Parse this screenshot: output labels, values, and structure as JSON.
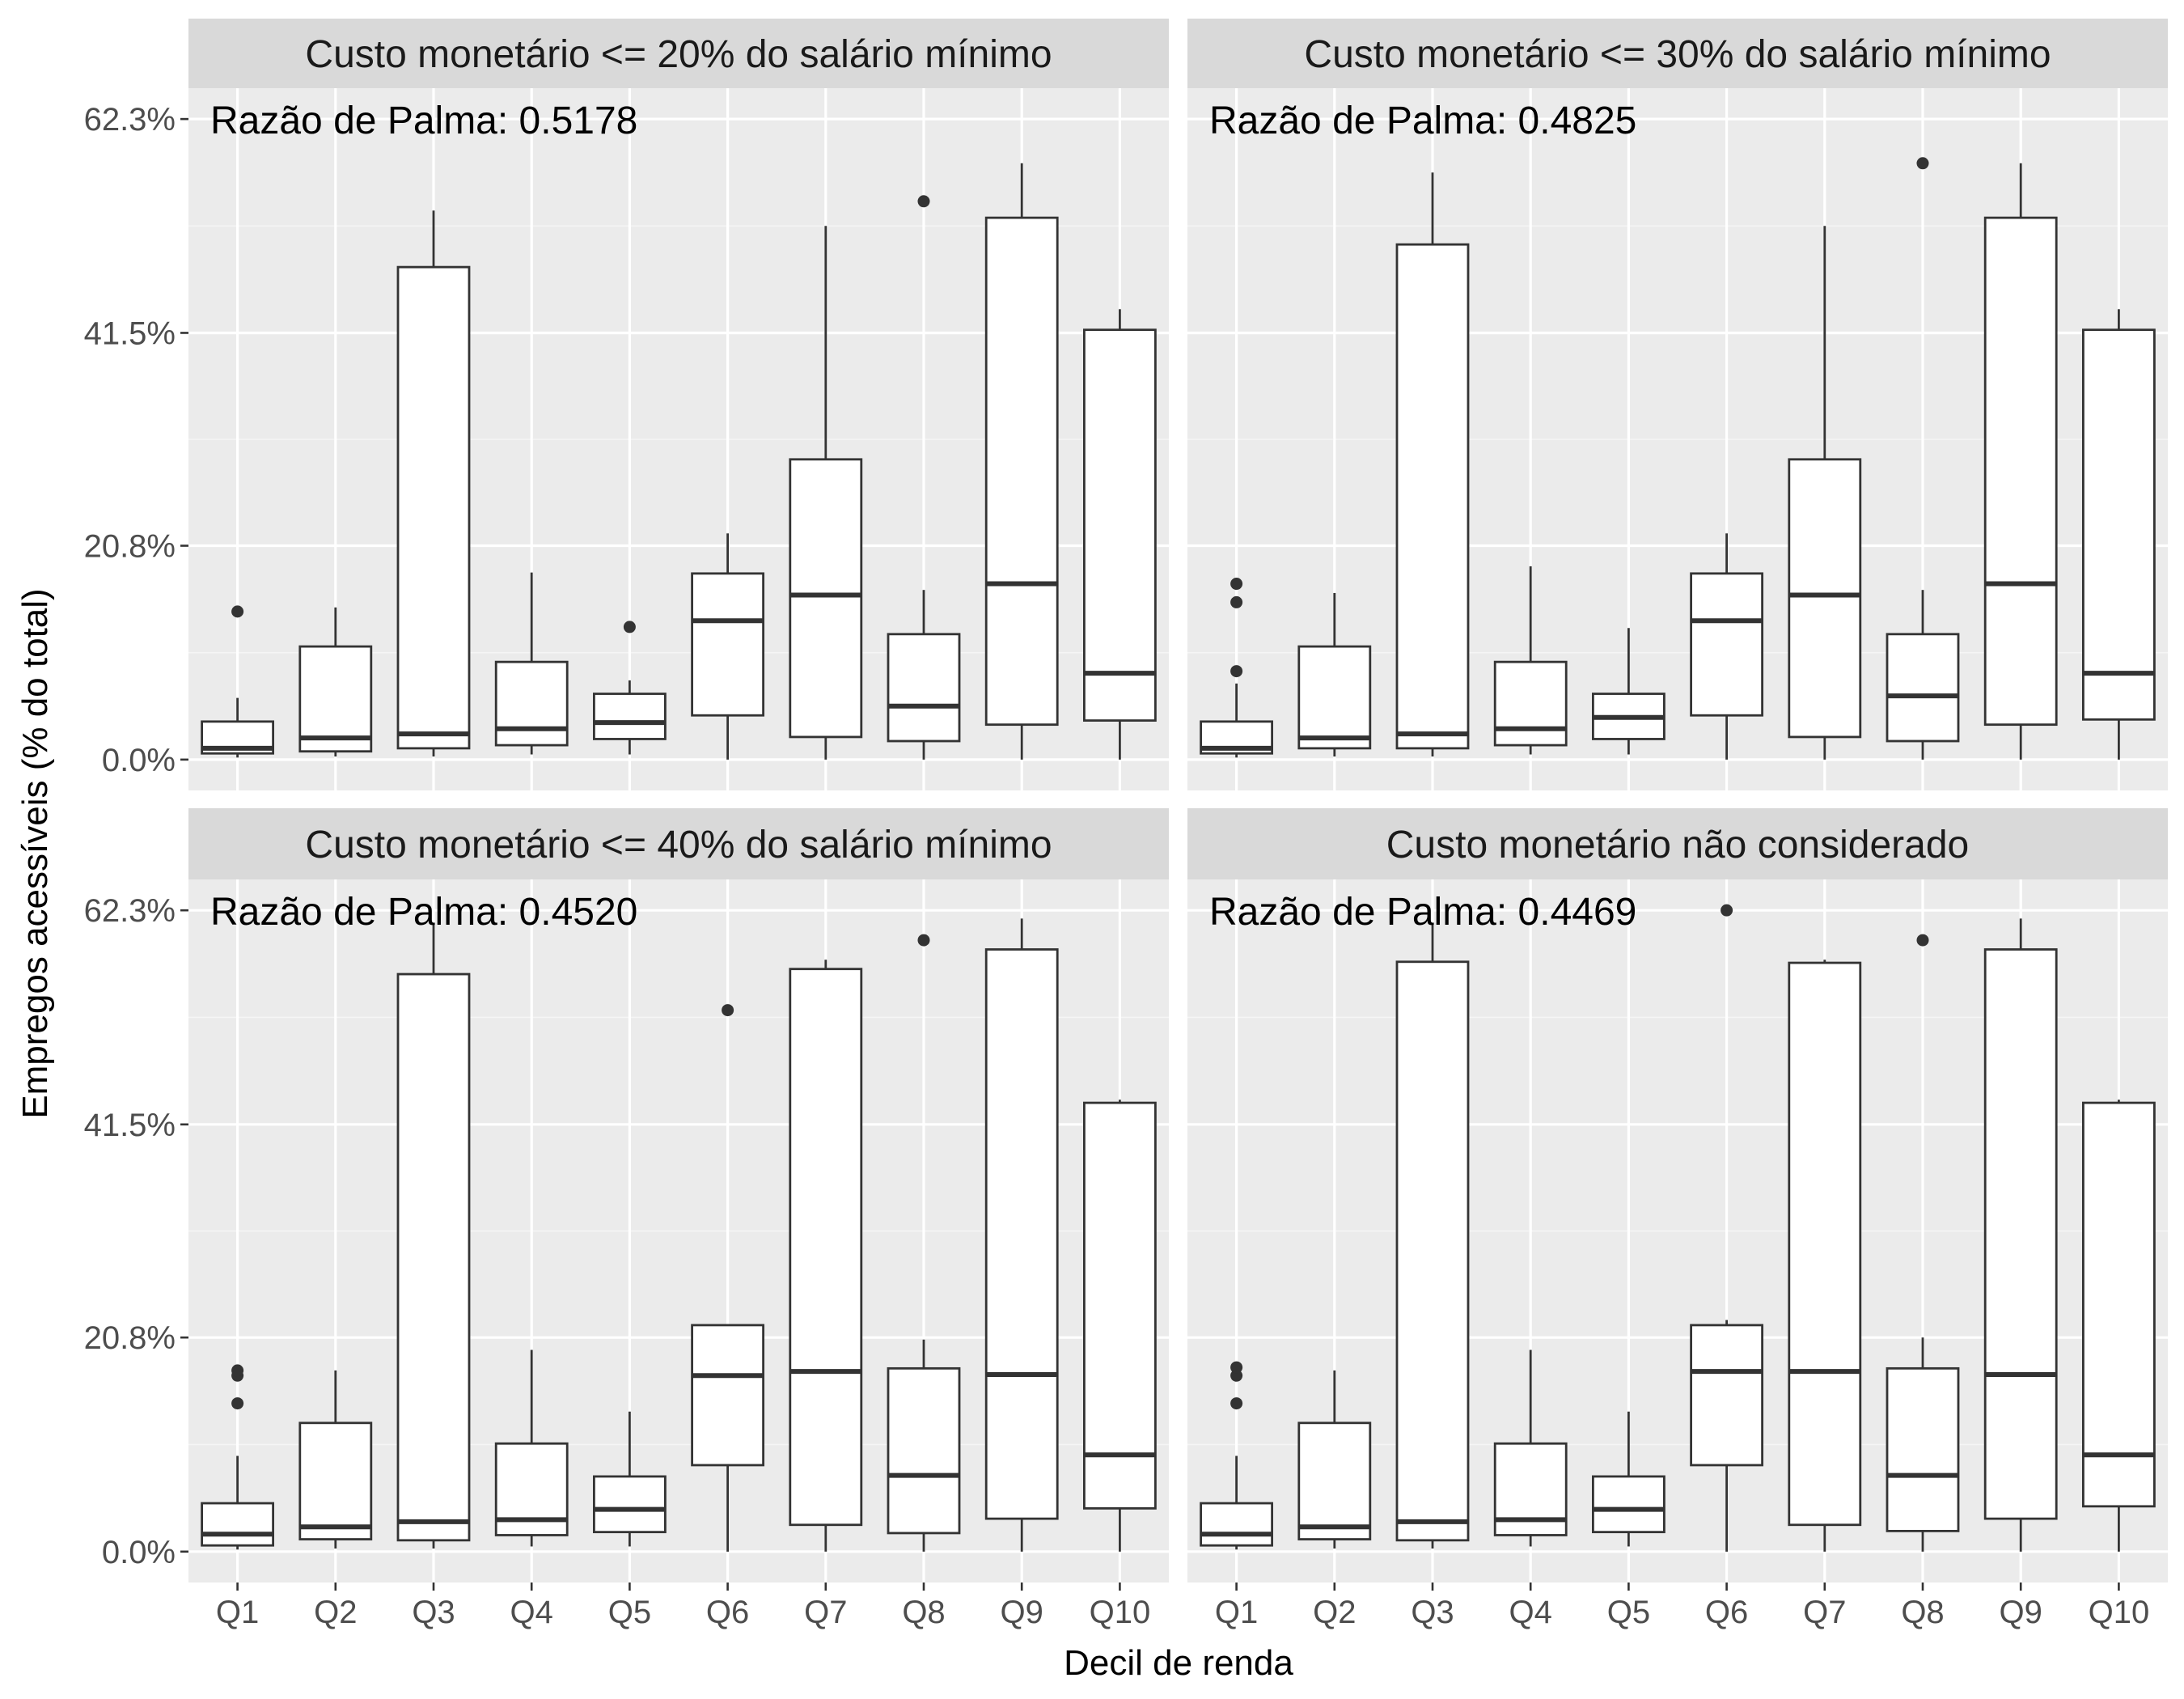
{
  "chart_data": {
    "type": "boxplot",
    "xlabel": "Decil de renda",
    "ylabel": "Empregos acessíveis (% do total)",
    "categories": [
      "Q1",
      "Q2",
      "Q3",
      "Q4",
      "Q5",
      "Q6",
      "Q7",
      "Q8",
      "Q9",
      "Q10"
    ],
    "y_ticks": [
      0.0,
      20.8,
      41.5,
      62.3
    ],
    "y_tick_labels": [
      "0.0%",
      "20.8%",
      "41.5%",
      "62.3%"
    ],
    "ylim": [
      -3.0,
      65.3
    ],
    "grid": true,
    "facets": [
      {
        "title": "Custo monetário <= 20% do salário mínimo",
        "annotation": "Razão de Palma: 0.5178",
        "boxes": [
          {
            "lower": 0.2,
            "q1": 0.6,
            "median": 1.1,
            "q3": 3.7,
            "upper": 6.0,
            "outliers": [
              14.4
            ]
          },
          {
            "lower": 0.3,
            "q1": 0.8,
            "median": 2.1,
            "q3": 11.0,
            "upper": 14.8,
            "outliers": []
          },
          {
            "lower": 0.3,
            "q1": 1.1,
            "median": 2.5,
            "q3": 47.9,
            "upper": 53.4,
            "outliers": []
          },
          {
            "lower": 0.5,
            "q1": 1.4,
            "median": 3.0,
            "q3": 9.5,
            "upper": 18.2,
            "outliers": []
          },
          {
            "lower": 0.5,
            "q1": 2.0,
            "median": 3.6,
            "q3": 6.4,
            "upper": 7.7,
            "outliers": [
              12.9
            ]
          },
          {
            "lower": 0.0,
            "q1": 4.3,
            "median": 13.5,
            "q3": 18.1,
            "upper": 22.0,
            "outliers": []
          },
          {
            "lower": 0.0,
            "q1": 2.2,
            "median": 16.0,
            "q3": 29.2,
            "upper": 51.9,
            "outliers": []
          },
          {
            "lower": 0.0,
            "q1": 1.8,
            "median": 5.2,
            "q3": 12.2,
            "upper": 16.5,
            "outliers": [
              54.3
            ]
          },
          {
            "lower": 0.0,
            "q1": 3.4,
            "median": 17.1,
            "q3": 52.7,
            "upper": 58.0,
            "outliers": []
          },
          {
            "lower": 0.0,
            "q1": 3.8,
            "median": 8.4,
            "q3": 41.8,
            "upper": 43.8,
            "outliers": []
          }
        ]
      },
      {
        "title": "Custo monetário <= 30% do salário mínimo",
        "annotation": "Razão de Palma: 0.4825",
        "boxes": [
          {
            "lower": 0.2,
            "q1": 0.6,
            "median": 1.1,
            "q3": 3.7,
            "upper": 7.4,
            "outliers": [
              8.6,
              15.3,
              17.1
            ]
          },
          {
            "lower": 0.3,
            "q1": 1.1,
            "median": 2.1,
            "q3": 11.0,
            "upper": 16.2,
            "outliers": []
          },
          {
            "lower": 0.3,
            "q1": 1.1,
            "median": 2.5,
            "q3": 50.1,
            "upper": 57.1,
            "outliers": []
          },
          {
            "lower": 0.5,
            "q1": 1.4,
            "median": 3.0,
            "q3": 9.5,
            "upper": 18.8,
            "outliers": []
          },
          {
            "lower": 0.5,
            "q1": 2.0,
            "median": 4.1,
            "q3": 6.4,
            "upper": 12.8,
            "outliers": []
          },
          {
            "lower": 0.0,
            "q1": 4.3,
            "median": 13.5,
            "q3": 18.1,
            "upper": 22.0,
            "outliers": []
          },
          {
            "lower": 0.0,
            "q1": 2.2,
            "median": 16.0,
            "q3": 29.2,
            "upper": 51.9,
            "outliers": []
          },
          {
            "lower": 0.0,
            "q1": 1.8,
            "median": 6.2,
            "q3": 12.2,
            "upper": 16.5,
            "outliers": [
              58.0
            ]
          },
          {
            "lower": 0.0,
            "q1": 3.4,
            "median": 17.1,
            "q3": 52.7,
            "upper": 58.0,
            "outliers": []
          },
          {
            "lower": 0.0,
            "q1": 3.9,
            "median": 8.4,
            "q3": 41.8,
            "upper": 43.8,
            "outliers": []
          }
        ]
      },
      {
        "title": "Custo monetário <= 40% do salário mínimo",
        "annotation": "Razão de Palma: 0.4520",
        "boxes": [
          {
            "lower": 0.2,
            "q1": 0.6,
            "median": 1.7,
            "q3": 4.7,
            "upper": 9.3,
            "outliers": [
              14.4,
              17.1,
              17.6
            ]
          },
          {
            "lower": 0.3,
            "q1": 1.2,
            "median": 2.4,
            "q3": 12.5,
            "upper": 17.6,
            "outliers": []
          },
          {
            "lower": 0.3,
            "q1": 1.1,
            "median": 2.9,
            "q3": 56.1,
            "upper": 60.9,
            "outliers": []
          },
          {
            "lower": 0.5,
            "q1": 1.6,
            "median": 3.1,
            "q3": 10.5,
            "upper": 19.6,
            "outliers": []
          },
          {
            "lower": 0.5,
            "q1": 1.9,
            "median": 4.1,
            "q3": 7.3,
            "upper": 13.6,
            "outliers": []
          },
          {
            "lower": 0.0,
            "q1": 8.4,
            "median": 17.1,
            "q3": 22.0,
            "upper": 22.0,
            "outliers": [
              52.6
            ]
          },
          {
            "lower": 0.0,
            "q1": 2.6,
            "median": 17.5,
            "q3": 56.6,
            "upper": 57.5,
            "outliers": []
          },
          {
            "lower": 0.0,
            "q1": 1.8,
            "median": 7.4,
            "q3": 17.8,
            "upper": 20.6,
            "outliers": [
              59.4
            ]
          },
          {
            "lower": 0.0,
            "q1": 3.2,
            "median": 17.2,
            "q3": 58.5,
            "upper": 61.5,
            "outliers": []
          },
          {
            "lower": 0.0,
            "q1": 4.2,
            "median": 9.4,
            "q3": 43.6,
            "upper": 43.9,
            "outliers": []
          }
        ]
      },
      {
        "title": "Custo monetário não considerado",
        "annotation": "Razão de Palma: 0.4469",
        "boxes": [
          {
            "lower": 0.2,
            "q1": 0.6,
            "median": 1.7,
            "q3": 4.7,
            "upper": 9.3,
            "outliers": [
              14.4,
              17.1,
              17.9
            ]
          },
          {
            "lower": 0.3,
            "q1": 1.2,
            "median": 2.4,
            "q3": 12.5,
            "upper": 17.6,
            "outliers": []
          },
          {
            "lower": 0.3,
            "q1": 1.1,
            "median": 2.9,
            "q3": 57.3,
            "upper": 60.9,
            "outliers": []
          },
          {
            "lower": 0.5,
            "q1": 1.6,
            "median": 3.1,
            "q3": 10.5,
            "upper": 19.6,
            "outliers": []
          },
          {
            "lower": 0.5,
            "q1": 1.9,
            "median": 4.1,
            "q3": 7.3,
            "upper": 13.6,
            "outliers": []
          },
          {
            "lower": 0.0,
            "q1": 8.4,
            "median": 17.5,
            "q3": 22.0,
            "upper": 22.5,
            "outliers": [
              62.3
            ]
          },
          {
            "lower": 0.0,
            "q1": 2.6,
            "median": 17.5,
            "q3": 57.2,
            "upper": 57.5,
            "outliers": []
          },
          {
            "lower": 0.0,
            "q1": 2.0,
            "median": 7.4,
            "q3": 17.8,
            "upper": 20.8,
            "outliers": [
              59.4
            ]
          },
          {
            "lower": 0.0,
            "q1": 3.2,
            "median": 17.2,
            "q3": 58.5,
            "upper": 61.5,
            "outliers": []
          },
          {
            "lower": 0.0,
            "q1": 4.4,
            "median": 9.4,
            "q3": 43.6,
            "upper": 43.9,
            "outliers": []
          }
        ]
      }
    ]
  }
}
